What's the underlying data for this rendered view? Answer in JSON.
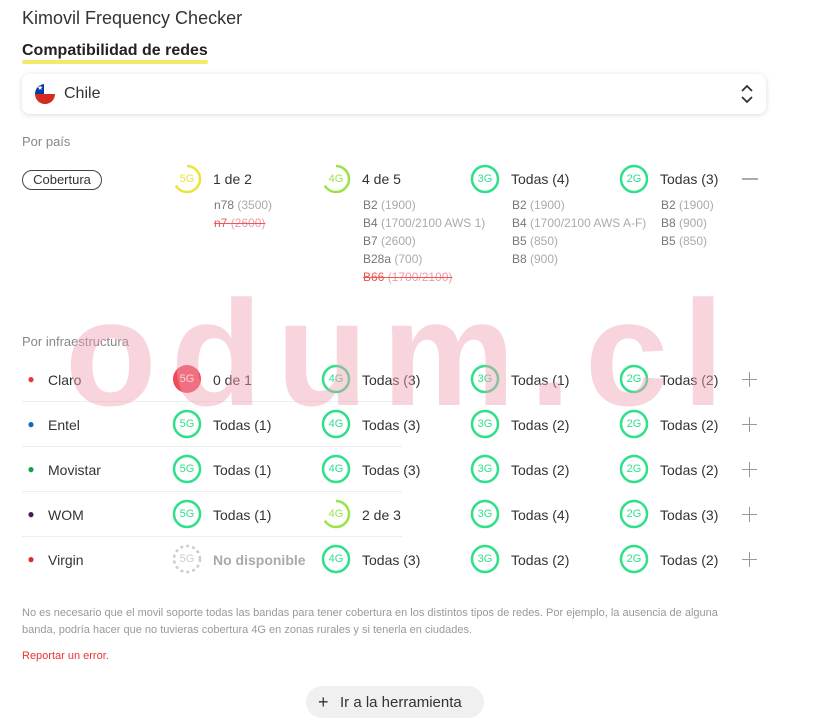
{
  "app": {
    "title": "Kimovil Frequency Checker",
    "subtitle": "Compatibilidad de redes"
  },
  "country": {
    "selected": "Chile"
  },
  "by_country": {
    "label": "Por país",
    "pill": "Cobertura",
    "techs": [
      {
        "tech": "5G",
        "status": "1 de 2",
        "color": "#ede43a",
        "bands": [
          {
            "b": "n78",
            "f": "(3500)",
            "strike": false
          },
          {
            "b": "n7",
            "f": "(2600)",
            "strike": true
          }
        ]
      },
      {
        "tech": "4G",
        "status": "4 de 5",
        "color": "#9be34a",
        "bands": [
          {
            "b": "B2",
            "f": "(1900)",
            "strike": false
          },
          {
            "b": "B4",
            "f": "(1700/2100 AWS 1)",
            "strike": false
          },
          {
            "b": "B7",
            "f": "(2600)",
            "strike": false
          },
          {
            "b": "B28a",
            "f": "(700)",
            "strike": false
          },
          {
            "b": "B66",
            "f": "(1700/2100)",
            "strike": true
          }
        ]
      },
      {
        "tech": "3G",
        "status": "Todas (4)",
        "color": "#2fe08a",
        "bands": [
          {
            "b": "B2",
            "f": "(1900)",
            "strike": false
          },
          {
            "b": "B4",
            "f": "(1700/2100 AWS A-F)",
            "strike": false
          },
          {
            "b": "B5",
            "f": "(850)",
            "strike": false
          },
          {
            "b": "B8",
            "f": "(900)",
            "strike": false
          }
        ]
      },
      {
        "tech": "2G",
        "status": "Todas (3)",
        "color": "#2fe08a",
        "bands": [
          {
            "b": "B2",
            "f": "(1900)",
            "strike": false
          },
          {
            "b": "B8",
            "f": "(900)",
            "strike": false
          },
          {
            "b": "B5",
            "f": "(850)",
            "strike": false
          }
        ]
      }
    ]
  },
  "by_infra": {
    "label": "Por infraestructura",
    "operators": [
      {
        "name": "Claro",
        "icon": "claro-logo-icon",
        "icon_color": "#e53935",
        "cells": [
          {
            "tech": "5G",
            "status": "0 de 1",
            "kind": "fail"
          },
          {
            "tech": "4G",
            "status": "Todas (3)",
            "kind": "full"
          },
          {
            "tech": "3G",
            "status": "Todas (1)",
            "kind": "full"
          },
          {
            "tech": "2G",
            "status": "Todas (2)",
            "kind": "full"
          }
        ]
      },
      {
        "name": "Entel",
        "icon": "entel-logo-icon",
        "icon_color": "#1565c0",
        "cells": [
          {
            "tech": "5G",
            "status": "Todas (1)",
            "kind": "full"
          },
          {
            "tech": "4G",
            "status": "Todas (3)",
            "kind": "full"
          },
          {
            "tech": "3G",
            "status": "Todas (2)",
            "kind": "full"
          },
          {
            "tech": "2G",
            "status": "Todas (2)",
            "kind": "full"
          }
        ]
      },
      {
        "name": "Movistar",
        "icon": "movistar-logo-icon",
        "icon_color": "#14a34a",
        "cells": [
          {
            "tech": "5G",
            "status": "Todas (1)",
            "kind": "full"
          },
          {
            "tech": "4G",
            "status": "Todas (3)",
            "kind": "full"
          },
          {
            "tech": "3G",
            "status": "Todas (2)",
            "kind": "full"
          },
          {
            "tech": "2G",
            "status": "Todas (2)",
            "kind": "full"
          }
        ]
      },
      {
        "name": "WOM",
        "icon": "wom-logo-icon",
        "icon_color": "#4a1a5c",
        "cells": [
          {
            "tech": "5G",
            "status": "Todas (1)",
            "kind": "full"
          },
          {
            "tech": "4G",
            "status": "2 de 3",
            "kind": "partial"
          },
          {
            "tech": "3G",
            "status": "Todas (4)",
            "kind": "full"
          },
          {
            "tech": "2G",
            "status": "Todas (3)",
            "kind": "full"
          }
        ]
      },
      {
        "name": "Virgin",
        "icon": "virgin-logo-icon",
        "icon_color": "#d32f2f",
        "cells": [
          {
            "tech": "5G",
            "status": "No disponible",
            "kind": "na"
          },
          {
            "tech": "4G",
            "status": "Todas (3)",
            "kind": "full"
          },
          {
            "tech": "3G",
            "status": "Todas (2)",
            "kind": "full"
          },
          {
            "tech": "2G",
            "status": "Todas (2)",
            "kind": "full"
          }
        ]
      }
    ]
  },
  "note": "No es necesario que el movil soporte todas las bandas para tener cobertura en los distintos tipos de redes. Por ejemplo, la ausencia de alguna banda, podría hacer que no tuvieras cobertura 4G en zonas rurales y si tenerla en ciudades.",
  "report_link": "Reportar un error.",
  "tool_button": "Ir a la herramienta",
  "watermark": "odum.cl",
  "colors": {
    "full": "#2fe08a",
    "partial": "#9be34a",
    "fail": "#f04a5a",
    "na": "#cccccc",
    "partial5g": "#ede43a"
  }
}
